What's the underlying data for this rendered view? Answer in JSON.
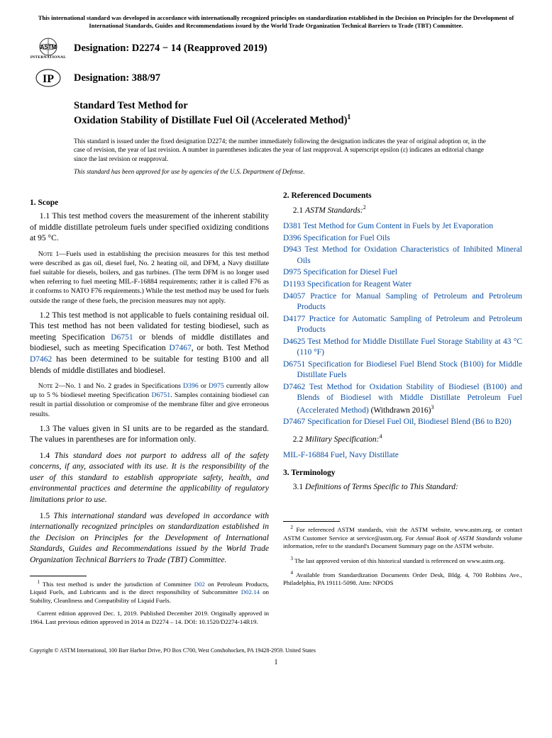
{
  "top_notice": "This international standard was developed in accordance with internationally recognized principles on standardization established in the Decision on Principles for the Development of International Standards, Guides and Recommendations issued by the World Trade Organization Technical Barriers to Trade (TBT) Committee.",
  "astm_logo_sub": "INTERNATIONAL",
  "designation_astm": "Designation: D2274 − 14 (Reapproved 2019)",
  "designation_ip": "Designation: 388/97",
  "title_intro": "Standard Test Method for",
  "title_main": "Oxidation Stability of Distillate Fuel Oil (Accelerated Method)",
  "title_sup": "1",
  "issuance": "This standard is issued under the fixed designation D2274; the number immediately following the designation indicates the year of original adoption or, in the case of revision, the year of last revision. A number in parentheses indicates the year of last reapproval. A superscript epsilon (ε) indicates an editorial change since the last revision or reapproval.",
  "approval_note": "This standard has been approved for use by agencies of the U.S. Department of Defense.",
  "scope_heading": "1. Scope",
  "scope_1_1": "1.1 This test method covers the measurement of the inherent stability of middle distillate petroleum fuels under specified oxidizing conditions at 95 °C.",
  "note1_label": "Note 1",
  "note1_text": "—Fuels used in establishing the precision measures for this test method were described as gas oil, diesel fuel, No. 2 heating oil, and DFM, a Navy distillate fuel suitable for diesels, boilers, and gas turbines. (The term DFM is no longer used when referring to fuel meeting MIL-F-16884 requirements; rather it is called F76 as it conforms to NATO F76 requirements.) While the test method may be used for fuels outside the range of these fuels, the precision measures may not apply.",
  "scope_1_2_a": "1.2 This test method is not applicable to fuels containing residual oil. This test method has not been validated for testing biodiesel, such as meeting Specification ",
  "scope_1_2_b": " or blends of middle distillates and biodiesel, such as meeting Specification ",
  "scope_1_2_c": ", or both. Test Method ",
  "scope_1_2_d": " has been determined to be suitable for testing B100 and all blends of middle distillates and biodiesel.",
  "link_D6751": "D6751",
  "link_D7467": "D7467",
  "link_D7462": "D7462",
  "note2_label": "Note 2",
  "note2_a": "—No. 1 and No. 2 grades in Specifications ",
  "note2_b": " or ",
  "note2_c": " currently allow up to 5 % biodiesel meeting Specification ",
  "note2_d": ". Samples containing biodiesel can result in partial dissolution or compromise of the membrane filter and give erroneous results.",
  "link_D396": "D396",
  "link_D975": "D975",
  "scope_1_3": "1.3 The values given in SI units are to be regarded as the standard. The values in parentheses are for information only.",
  "scope_1_4": "1.4 This standard does not purport to address all of the safety concerns, if any, associated with its use. It is the responsibility of the user of this standard to establish appropriate safety, health, and environmental practices and determine the applicability of regulatory limitations prior to use.",
  "scope_1_5": "1.5 This international standard was developed in accordance with internationally recognized principles on standardization established in the Decision on Principles for the Development of International Standards, Guides and Recommendations issued by the World Trade Organization Technical Barriers to Trade (TBT) Committee.",
  "refdocs_heading": "2. Referenced Documents",
  "refdocs_sub1_a": "2.1 ",
  "refdocs_sub1_b": "ASTM Standards:",
  "refdocs_sub1_sup": "2",
  "refs": [
    {
      "code": "D381",
      "desc": "Test Method for Gum Content in Fuels by Jet Evaporation",
      "sup": ""
    },
    {
      "code": "D396",
      "desc": "Specification for Fuel Oils",
      "sup": ""
    },
    {
      "code": "D943",
      "desc": "Test Method for Oxidation Characteristics of Inhibited Mineral Oils",
      "sup": ""
    },
    {
      "code": "D975",
      "desc": "Specification for Diesel Fuel",
      "sup": ""
    },
    {
      "code": "D1193",
      "desc": "Specification for Reagent Water",
      "sup": ""
    },
    {
      "code": "D4057",
      "desc": "Practice for Manual Sampling of Petroleum and Petroleum Products",
      "sup": ""
    },
    {
      "code": "D4177",
      "desc": "Practice for Automatic Sampling of Petroleum and Petroleum Products",
      "sup": ""
    },
    {
      "code": "D4625",
      "desc": "Test Method for Middle Distillate Fuel Storage Stability at 43 °C (110 °F)",
      "sup": ""
    },
    {
      "code": "D6751",
      "desc": "Specification for Biodiesel Fuel Blend Stock (B100) for Middle Distillate Fuels",
      "sup": ""
    },
    {
      "code": "D7462",
      "desc": "Test Method for Oxidation Stability of Biodiesel (B100) and Blends of Biodiesel with Middle Distillate Petroleum Fuel (Accelerated Method)",
      "withdrawn": " (Withdrawn 2016)",
      "sup": "3"
    },
    {
      "code": "D7467",
      "desc": "Specification for Diesel Fuel Oil, Biodiesel Blend (B6 to B20)",
      "sup": ""
    }
  ],
  "refdocs_sub2_a": "2.2 ",
  "refdocs_sub2_b": "Military Specification:",
  "refdocs_sub2_sup": "4",
  "mil_code": "MIL-F-16884",
  "mil_desc": "Fuel, Navy Distillate",
  "term_heading": "3. Terminology",
  "term_3_1_a": "3.1 ",
  "term_3_1_b": "Definitions of Terms Specific to This Standard:",
  "fn1_a": " This test method is under the jurisdiction of Committee ",
  "fn1_b": " on Petroleum Products, Liquid Fuels, and Lubricants and is the direct responsibility of Subcommittee ",
  "fn1_c": " on Stability, Cleanliness and Compatibility of Liquid Fuels.",
  "link_D02": "D02",
  "link_D0214": "D02.14",
  "fn1_cont": "Current edition approved Dec. 1, 2019. Published December 2019. Originally approved in 1964. Last previous edition approved in 2014 as D2274 – 14. DOI: 10.1520/D2274-14R19.",
  "fn2_a": " For referenced ASTM standards, visit the ASTM website, www.astm.org, or contact ASTM Customer Service at service@astm.org. For ",
  "fn2_ital": "Annual Book of ASTM Standards",
  "fn2_b": " volume information, refer to the standard's Document Summary page on the ASTM website.",
  "fn3": " The last approved version of this historical standard is referenced on www.astm.org.",
  "fn4": " Available from Standardization Documents Order Desk, Bldg. 4, 700 Robbins Ave., Philadelphia, PA 19111-5098. Attn: NPODS",
  "copyright": "Copyright © ASTM International, 100 Barr Harbor Drive, PO Box C700, West Conshohocken, PA 19428-2959. United States",
  "page_num": "1"
}
